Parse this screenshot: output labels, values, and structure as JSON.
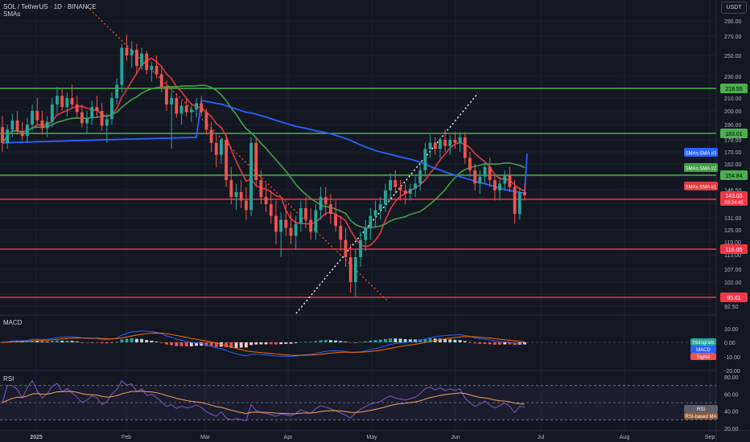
{
  "header": {
    "symbol_line": "SOL / TetherUS · 1D · BINANCE",
    "indicator_line": "SMAs"
  },
  "currency_badge": "USDT",
  "colors": {
    "background": "#131722",
    "grid": "#1e222d",
    "bull": "#26a69a",
    "bear": "#ef5350",
    "red_level": "#f23645",
    "green_level": "#4caf50",
    "sma_red": "#e03a3e",
    "sma_green": "#43a047",
    "sma_blue": "#2962ff",
    "macd_line": "#2962ff",
    "signal_line": "#ff6d00",
    "rsi_line": "#7e57c2",
    "rsi_ma": "#f7a35c",
    "axis_text": "#b2b5be",
    "trend_dotted": "#ffffff",
    "trend_red_dotted": "#ff5722"
  },
  "chart_data": [
    {
      "type": "candlestick",
      "title": "SOL / TetherUS · 1D · BINANCE",
      "price_axis_ticks": [
        290.0,
        270.0,
        250.0,
        230.0,
        210.0,
        200.0,
        190.0,
        178.0,
        170.0,
        162.0,
        154.0,
        146.5,
        138.5,
        131.0,
        125.0,
        119.0,
        113.0,
        107.0,
        102.0,
        97.5,
        92.5
      ],
      "time_axis_labels": [
        "2025",
        "Feb",
        "Mar",
        "Apr",
        "May",
        "Jun",
        "Jul",
        "Aug",
        "Sep"
      ],
      "horizontal_levels": [
        {
          "price": 218.55,
          "color": "green",
          "label": "218.55"
        },
        {
          "price": 183.01,
          "color": "green",
          "label": "183.01"
        },
        {
          "price": 154.84,
          "color": "green",
          "label": "154.84"
        },
        {
          "price": 140.65,
          "color": "red",
          "label": "140.65"
        },
        {
          "price": 116.05,
          "color": "red",
          "label": "116.05"
        },
        {
          "price": 95.61,
          "color": "red",
          "label": "95.61"
        }
      ],
      "current_price": {
        "value": "143.03",
        "countdown": "03:24:45"
      },
      "sma_labels": [
        {
          "name": "SMAs:SMA #3",
          "color": "blue"
        },
        {
          "name": "SMAs:SMA #2",
          "color": "green"
        },
        {
          "name": "SMAs:SMA #1",
          "color": "red"
        }
      ],
      "candles_ohlc": [
        [
          188,
          196,
          170,
          176
        ],
        [
          176,
          190,
          172,
          186
        ],
        [
          186,
          198,
          180,
          193
        ],
        [
          193,
          200,
          182,
          185
        ],
        [
          185,
          192,
          178,
          181
        ],
        [
          181,
          195,
          176,
          190
        ],
        [
          190,
          205,
          185,
          200
        ],
        [
          200,
          210,
          190,
          193
        ],
        [
          193,
          200,
          182,
          187
        ],
        [
          187,
          196,
          180,
          192
        ],
        [
          192,
          210,
          188,
          205
        ],
        [
          205,
          220,
          198,
          212
        ],
        [
          212,
          218,
          200,
          203
        ],
        [
          203,
          215,
          196,
          210
        ],
        [
          210,
          222,
          202,
          205
        ],
        [
          205,
          212,
          195,
          199
        ],
        [
          199,
          205,
          188,
          191
        ],
        [
          191,
          200,
          183,
          195
        ],
        [
          195,
          208,
          190,
          203
        ],
        [
          203,
          212,
          195,
          200
        ],
        [
          200,
          206,
          185,
          189
        ],
        [
          189,
          198,
          176,
          194
        ],
        [
          194,
          215,
          190,
          210
        ],
        [
          210,
          228,
          205,
          222
        ],
        [
          222,
          262,
          215,
          258
        ],
        [
          258,
          272,
          245,
          250
        ],
        [
          250,
          265,
          238,
          256
        ],
        [
          256,
          262,
          232,
          240
        ],
        [
          240,
          258,
          236,
          252
        ],
        [
          252,
          255,
          232,
          236
        ],
        [
          236,
          244,
          225,
          240
        ],
        [
          240,
          250,
          228,
          232
        ],
        [
          232,
          240,
          215,
          220
        ],
        [
          220,
          226,
          200,
          205
        ],
        [
          205,
          218,
          172,
          210
        ],
        [
          210,
          214,
          195,
          198
        ],
        [
          198,
          208,
          190,
          204
        ],
        [
          204,
          210,
          196,
          199
        ],
        [
          199,
          206,
          192,
          201
        ],
        [
          201,
          210,
          195,
          206
        ],
        [
          206,
          212,
          196,
          199
        ],
        [
          199,
          202,
          182,
          186
        ],
        [
          186,
          192,
          170,
          176
        ],
        [
          176,
          182,
          160,
          168
        ],
        [
          168,
          180,
          162,
          178
        ],
        [
          178,
          182,
          148,
          152
        ],
        [
          152,
          160,
          138,
          142
        ],
        [
          142,
          150,
          135,
          145
        ],
        [
          145,
          152,
          136,
          140
        ],
        [
          140,
          148,
          130,
          135
        ],
        [
          135,
          180,
          132,
          176
        ],
        [
          176,
          180,
          148,
          152
        ],
        [
          152,
          158,
          138,
          142
        ],
        [
          142,
          150,
          134,
          138
        ],
        [
          138,
          146,
          128,
          132
        ],
        [
          132,
          140,
          118,
          124
        ],
        [
          124,
          134,
          112,
          130
        ],
        [
          130,
          138,
          122,
          126
        ],
        [
          126,
          134,
          118,
          122
        ],
        [
          122,
          132,
          116,
          128
        ],
        [
          128,
          140,
          124,
          136
        ],
        [
          136,
          142,
          126,
          130
        ],
        [
          130,
          136,
          120,
          124
        ],
        [
          124,
          138,
          120,
          135
        ],
        [
          135,
          148,
          130,
          142
        ],
        [
          142,
          148,
          132,
          138
        ],
        [
          138,
          144,
          128,
          133
        ],
        [
          133,
          140,
          124,
          127
        ],
        [
          127,
          132,
          115,
          120
        ],
        [
          120,
          126,
          108,
          112
        ],
        [
          112,
          118,
          98,
          102
        ],
        [
          102,
          116,
          96,
          112
        ],
        [
          112,
          124,
          108,
          120
        ],
        [
          120,
          130,
          115,
          126
        ],
        [
          126,
          136,
          120,
          132
        ],
        [
          132,
          140,
          126,
          135
        ],
        [
          135,
          142,
          130,
          138
        ],
        [
          138,
          150,
          134,
          146
        ],
        [
          146,
          156,
          140,
          152
        ],
        [
          152,
          158,
          144,
          148
        ],
        [
          148,
          152,
          140,
          146
        ],
        [
          146,
          150,
          138,
          144
        ],
        [
          144,
          150,
          140,
          147
        ],
        [
          147,
          154,
          142,
          150
        ],
        [
          150,
          162,
          146,
          158
        ],
        [
          158,
          176,
          154,
          172
        ],
        [
          172,
          182,
          166,
          176
        ],
        [
          176,
          180,
          168,
          172
        ],
        [
          172,
          180,
          166,
          178
        ],
        [
          178,
          186,
          170,
          174
        ],
        [
          174,
          182,
          168,
          178
        ],
        [
          178,
          184,
          172,
          176
        ],
        [
          176,
          184,
          170,
          180
        ],
        [
          180,
          184,
          162,
          166
        ],
        [
          166,
          170,
          154,
          158
        ],
        [
          158,
          162,
          146,
          150
        ],
        [
          150,
          158,
          144,
          154
        ],
        [
          154,
          164,
          150,
          160
        ],
        [
          160,
          166,
          148,
          152
        ],
        [
          152,
          156,
          140,
          146
        ],
        [
          146,
          154,
          140,
          150
        ],
        [
          150,
          158,
          146,
          155
        ],
        [
          155,
          160,
          145,
          148
        ],
        [
          148,
          152,
          128,
          133
        ],
        [
          133,
          148,
          130,
          145
        ],
        [
          145,
          150,
          140,
          143
        ]
      ]
    },
    {
      "type": "line",
      "title": "MACD",
      "y_ticks": [
        10.0,
        0.0,
        -10.0,
        -20.0
      ],
      "legend": [
        "Histogram",
        "MACD",
        "Signal"
      ]
    },
    {
      "type": "line",
      "title": "RSI",
      "y_ticks": [
        80.0,
        60.0,
        40.0,
        20.0
      ],
      "legend": [
        "RSI",
        "RSI-based MA"
      ],
      "bands": [
        70,
        50,
        30
      ]
    }
  ]
}
